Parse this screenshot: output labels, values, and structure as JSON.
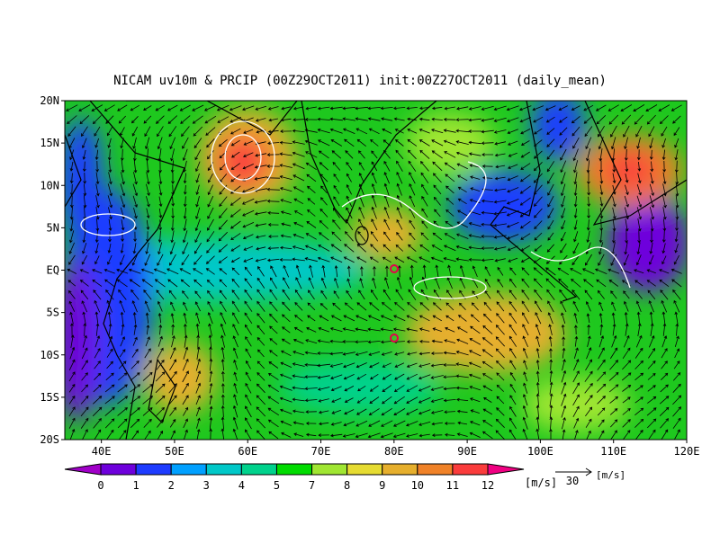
{
  "title": "NICAM uv10m & PRCIP (00Z29OCT2011) init:00Z27OCT2011 (daily_mean)",
  "lat_labels": [
    "20N",
    "15N",
    "10N",
    "5N",
    "EQ",
    "5S",
    "10S",
    "15S",
    "20S"
  ],
  "lon_labels": [
    "40E",
    "50E",
    "60E",
    "70E",
    "80E",
    "90E",
    "100E",
    "110E",
    "120E"
  ],
  "colorbar": {
    "labels": [
      0,
      1,
      2,
      3,
      4,
      5,
      7,
      8,
      9,
      10,
      11,
      12
    ],
    "colors": [
      "#a000c8",
      "#6e00dc",
      "#1e3cff",
      "#00a0ff",
      "#00c8c8",
      "#00d28c",
      "#00dc00",
      "#a0e632",
      "#e6dc32",
      "#e6af2d",
      "#f08228",
      "#fa3c3c",
      "#f00082"
    ],
    "unit": "[m/s]"
  },
  "vector_legend": {
    "value": "30",
    "unit": "[m/s]"
  }
}
